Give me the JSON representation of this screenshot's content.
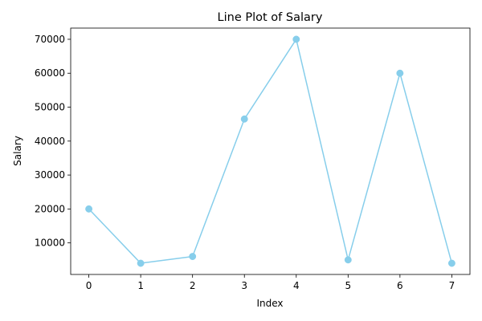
{
  "chart_data": {
    "type": "line",
    "title": "Line Plot of Salary",
    "xlabel": "Index",
    "ylabel": "Salary",
    "x": [
      0,
      1,
      2,
      3,
      4,
      5,
      6,
      7
    ],
    "series": [
      {
        "values": [
          20000,
          4000,
          6000,
          46500,
          70000,
          5000,
          60000,
          4000
        ],
        "color": "#87CEEB",
        "marker": "circle"
      }
    ],
    "xlim": [
      -0.35,
      7.35
    ],
    "ylim": [
      700,
      73300
    ],
    "xticks": [
      0,
      1,
      2,
      3,
      4,
      5,
      6,
      7
    ],
    "yticks": [
      10000,
      20000,
      30000,
      40000,
      50000,
      60000,
      70000
    ],
    "grid": false,
    "legend": "none"
  }
}
